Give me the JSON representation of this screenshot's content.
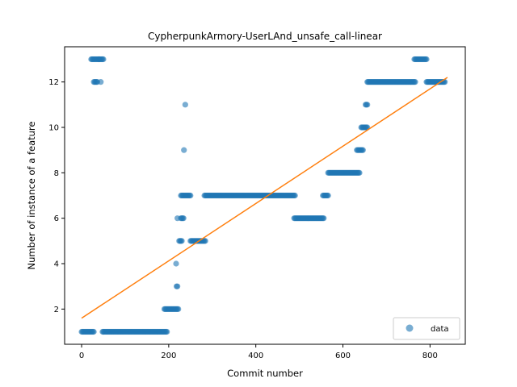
{
  "chart_data": {
    "type": "scatter",
    "title": "CypherpunkArmory-UserLAnd_unsafe_call-linear",
    "xlabel": "Commit number",
    "ylabel": "Number of instance of a feature",
    "xlim": [
      -39,
      881
    ],
    "ylim": [
      0.45,
      13.55
    ],
    "xticks": [
      0,
      200,
      400,
      600,
      800
    ],
    "yticks": [
      2,
      4,
      6,
      8,
      10,
      12
    ],
    "grid": false,
    "legend": {
      "position": "lower-right",
      "entries": [
        "data"
      ]
    },
    "colors": {
      "data": "#1f77b4",
      "fit": "#ff7f0e"
    },
    "series": [
      {
        "name": "data",
        "kind": "scatter",
        "segments": [
          {
            "x_start": 0,
            "x_end": 28,
            "y": 1
          },
          {
            "x_start": 22,
            "x_end": 40,
            "y": 13
          },
          {
            "x_start": 28,
            "x_end": 36,
            "y": 12
          },
          {
            "x_start": 40,
            "x_end": 50,
            "y": 13
          },
          {
            "x_start": 44,
            "x_end": 44,
            "y": 12
          },
          {
            "x_start": 48,
            "x_end": 196,
            "y": 1
          },
          {
            "x_start": 190,
            "x_end": 222,
            "y": 2
          },
          {
            "x_start": 218,
            "x_end": 220,
            "y": 3
          },
          {
            "x_start": 217,
            "x_end": 217,
            "y": 4
          },
          {
            "x_start": 220,
            "x_end": 220,
            "y": 6
          },
          {
            "x_start": 224,
            "x_end": 230,
            "y": 5
          },
          {
            "x_start": 228,
            "x_end": 234,
            "y": 6
          },
          {
            "x_start": 228,
            "x_end": 250,
            "y": 7
          },
          {
            "x_start": 235,
            "x_end": 235,
            "y": 9
          },
          {
            "x_start": 238,
            "x_end": 238,
            "y": 11
          },
          {
            "x_start": 250,
            "x_end": 284,
            "y": 5
          },
          {
            "x_start": 282,
            "x_end": 490,
            "y": 7
          },
          {
            "x_start": 488,
            "x_end": 556,
            "y": 6
          },
          {
            "x_start": 554,
            "x_end": 566,
            "y": 7
          },
          {
            "x_start": 566,
            "x_end": 638,
            "y": 8
          },
          {
            "x_start": 632,
            "x_end": 646,
            "y": 9
          },
          {
            "x_start": 642,
            "x_end": 656,
            "y": 10
          },
          {
            "x_start": 652,
            "x_end": 656,
            "y": 11
          },
          {
            "x_start": 656,
            "x_end": 766,
            "y": 12
          },
          {
            "x_start": 764,
            "x_end": 792,
            "y": 13
          },
          {
            "x_start": 792,
            "x_end": 834,
            "y": 12
          }
        ]
      },
      {
        "name": "fit",
        "kind": "line",
        "x": [
          0,
          840
        ],
        "y": [
          1.6,
          12.2
        ]
      }
    ]
  }
}
